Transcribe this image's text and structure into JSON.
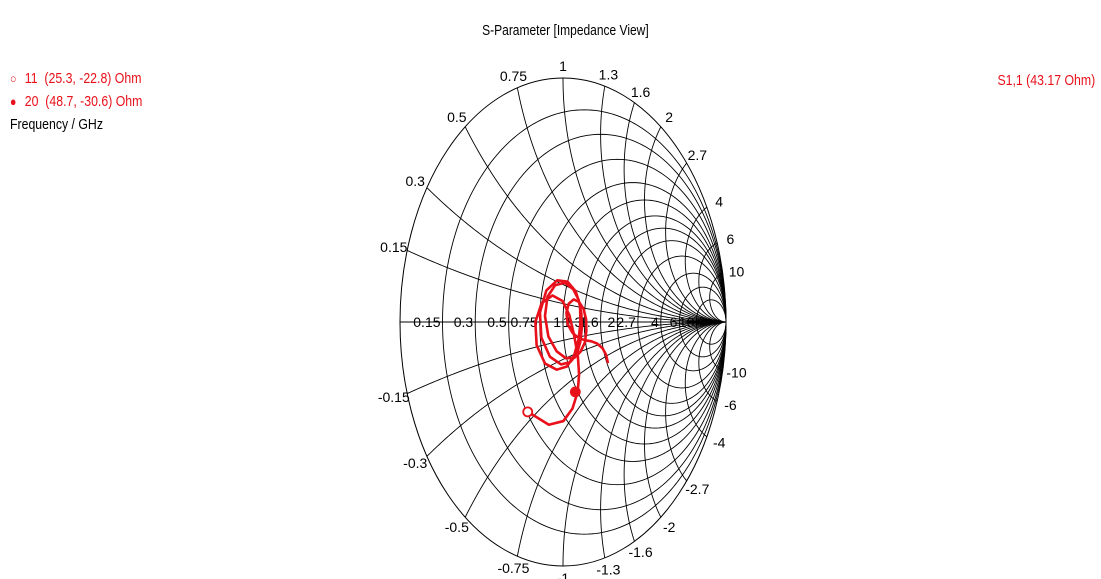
{
  "chart_data": {
    "type": "smith",
    "title": "S-Parameter [Impedance View]",
    "resistance_labels": [
      "0.15",
      "0.3",
      "0.5",
      "0.75",
      "1",
      "1",
      "1.3",
      "1.6",
      "2",
      "2.7",
      "4",
      "6",
      "10"
    ],
    "reactance_upper_labels": [
      "0.15",
      "0.3",
      "0.5",
      "0.75",
      "1",
      "1.3",
      "1.6",
      "2",
      "2.7",
      "4",
      "6",
      "10"
    ],
    "reactance_lower_labels": [
      "-0.15",
      "-0.3",
      "-0.5",
      "-0.75",
      "-1",
      "-1.3",
      "-1.6",
      "-2",
      "-2.7",
      "-4",
      "-6",
      "-10"
    ],
    "series": [
      {
        "name": "S1,1",
        "label": "S1,1 (43.17 Ohm)",
        "color": "#e8101a",
        "points": [
          [
            0.51,
            -0.46
          ],
          [
            0.6,
            -0.62
          ],
          [
            0.72,
            -0.7
          ],
          [
            0.86,
            -0.7
          ],
          [
            1.0,
            -0.63
          ],
          [
            1.1,
            -0.5
          ],
          [
            1.15,
            -0.33
          ],
          [
            1.14,
            -0.13
          ],
          [
            1.08,
            0.06
          ],
          [
            0.98,
            0.17
          ],
          [
            0.86,
            0.19
          ],
          [
            0.76,
            0.12
          ],
          [
            0.71,
            0.0
          ],
          [
            0.71,
            -0.14
          ],
          [
            0.76,
            -0.27
          ],
          [
            0.86,
            -0.35
          ],
          [
            0.98,
            -0.37
          ],
          [
            1.1,
            -0.31
          ],
          [
            1.2,
            -0.17
          ],
          [
            1.24,
            0.0
          ],
          [
            1.22,
            0.17
          ],
          [
            1.13,
            0.29
          ],
          [
            1.0,
            0.34
          ],
          [
            0.88,
            0.31
          ],
          [
            0.79,
            0.21
          ],
          [
            0.75,
            0.06
          ],
          [
            0.76,
            -0.1
          ],
          [
            0.82,
            -0.24
          ],
          [
            0.92,
            -0.33
          ],
          [
            1.03,
            -0.35
          ],
          [
            1.14,
            -0.31
          ],
          [
            1.22,
            -0.2
          ],
          [
            1.26,
            -0.06
          ],
          [
            1.25,
            0.09
          ],
          [
            1.19,
            0.22
          ],
          [
            1.09,
            0.3
          ],
          [
            0.97,
            0.32
          ],
          [
            0.87,
            0.27
          ],
          [
            0.81,
            0.17
          ],
          [
            0.8,
            0.04
          ],
          [
            0.83,
            -0.1
          ],
          [
            0.9,
            -0.22
          ],
          [
            0.99,
            -0.3
          ],
          [
            1.1,
            -0.33
          ],
          [
            1.2,
            -0.3
          ],
          [
            1.29,
            -0.22
          ],
          [
            1.33,
            -0.1
          ],
          [
            1.33,
            0.03
          ],
          [
            1.28,
            0.14
          ],
          [
            1.2,
            0.2
          ],
          [
            1.12,
            0.21
          ],
          [
            1.06,
            0.16
          ],
          [
            1.04,
            0.08
          ],
          [
            1.06,
            -0.02
          ],
          [
            1.12,
            -0.1
          ],
          [
            1.2,
            -0.16
          ],
          [
            1.3,
            -0.2
          ],
          [
            1.4,
            -0.23
          ],
          [
            1.5,
            -0.28
          ],
          [
            1.59,
            -0.37
          ],
          [
            1.63,
            -0.48
          ],
          [
            1.62,
            -0.61
          ]
        ],
        "markers": [
          {
            "id": "11",
            "symbol": "○",
            "frequency": "11",
            "text": "(25.3, -22.8) Ohm",
            "r": 0.506,
            "x": -0.456
          },
          {
            "id": "20",
            "symbol": "●",
            "frequency": "20",
            "text": "(48.7, -30.6) Ohm",
            "r": 0.974,
            "x": -0.612
          }
        ]
      }
    ],
    "legend_title": "Frequency / GHz"
  }
}
